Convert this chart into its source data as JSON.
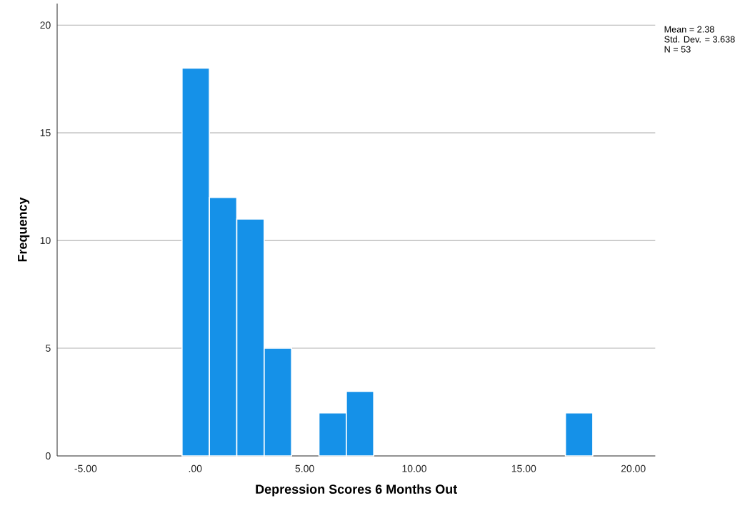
{
  "chart_data": {
    "type": "histogram",
    "xlabel": "Depression Scores 6 Months Out",
    "ylabel": "Frequency",
    "bins": [
      -0.6,
      0.65,
      1.9,
      3.15,
      4.4,
      5.65,
      6.9,
      8.15,
      9.4,
      10.65,
      11.9,
      13.15,
      14.4,
      15.65,
      16.9,
      18.15
    ],
    "values": [
      18,
      12,
      11,
      5,
      0,
      2,
      3,
      0,
      0,
      0,
      0,
      0,
      0,
      0,
      2
    ],
    "color": "#1591e8",
    "xlim": [
      -6.3,
      21
    ],
    "ylim": [
      0,
      21
    ],
    "xticks": [
      {
        "value": -5,
        "label": "-5.00"
      },
      {
        "value": 0,
        "label": ".00"
      },
      {
        "value": 5,
        "label": "5.00"
      },
      {
        "value": 10,
        "label": "10.00"
      },
      {
        "value": 15,
        "label": "15.00"
      },
      {
        "value": 20,
        "label": "20.00"
      }
    ],
    "yticks": [
      0,
      5,
      10,
      15,
      20
    ],
    "grid": "y",
    "annotations": [
      "Mean = 2.38",
      "Std. Dev. = 3.638",
      "N = 53"
    ]
  }
}
